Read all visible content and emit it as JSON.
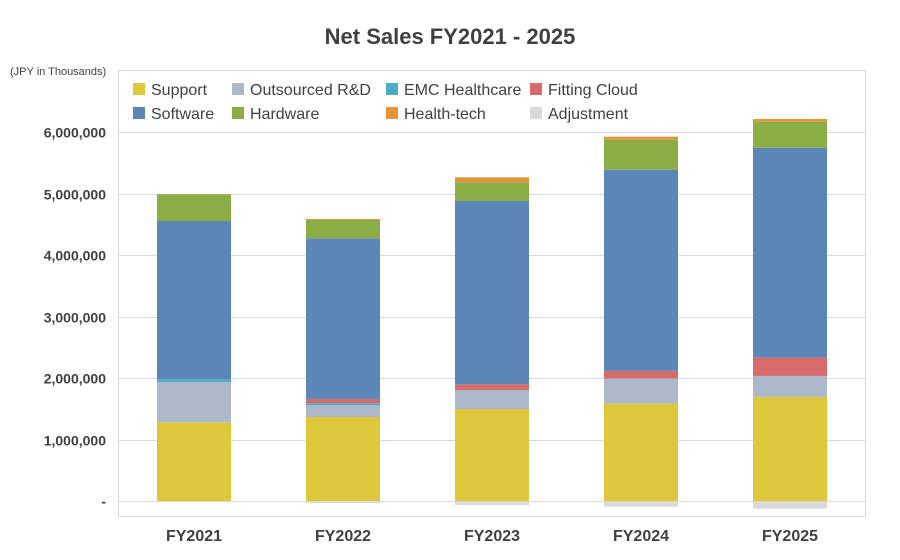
{
  "chart_data": {
    "type": "bar",
    "stacked": true,
    "title": "Net Sales FY2021 2025",
    "title_text": "Net Sales FY2021 - 2025",
    "unit_label": "(JPY in Thousands)",
    "xlabel": "",
    "ylabel": "",
    "ylim": [
      -250000,
      7000000
    ],
    "grid": true,
    "legend_position": "top-inside",
    "categories": [
      "FY2021",
      "FY2022",
      "FY2023",
      "FY2024",
      "FY2025"
    ],
    "yticks": [
      {
        "value": 0,
        "label": "-"
      },
      {
        "value": 1000000,
        "label": "1,000,000"
      },
      {
        "value": 2000000,
        "label": "2,000,000"
      },
      {
        "value": 3000000,
        "label": "3,000,000"
      },
      {
        "value": 4000000,
        "label": "4,000,000"
      },
      {
        "value": 5000000,
        "label": "5,000,000"
      },
      {
        "value": 6000000,
        "label": "6,000,000"
      }
    ],
    "series": [
      {
        "name": "Support",
        "color": "#DEC73A",
        "values": [
          1280000,
          1366000,
          1496000,
          1583000,
          1692000
        ]
      },
      {
        "name": "Outsourced R&D",
        "color": "#ADB8CA",
        "values": [
          655000,
          190000,
          309000,
          407000,
          342000
        ]
      },
      {
        "name": "EMC Healthcare",
        "color": "#4BACC6",
        "values": [
          45000,
          33000,
          0,
          0,
          0
        ]
      },
      {
        "name": "Fitting Cloud",
        "color": "#D66B6B",
        "values": [
          0,
          70000,
          93000,
          125000,
          298000
        ]
      },
      {
        "name": "Software",
        "color": "#5B87B8",
        "values": [
          2573000,
          2613000,
          2980000,
          3271000,
          3412000
        ]
      },
      {
        "name": "Hardware",
        "color": "#8AAE45",
        "values": [
          434000,
          297000,
          304000,
          489000,
          423000
        ]
      },
      {
        "name": "Health-tech",
        "color": "#E39537",
        "values": [
          0,
          16000,
          81000,
          49000,
          44000
        ]
      },
      {
        "name": "Adjustment",
        "color": "#D9D9D9",
        "values": [
          -16000,
          -33000,
          -65000,
          -92000,
          -124000
        ]
      }
    ],
    "legend_order": [
      "Support",
      "Outsourced R&D",
      "EMC Healthcare",
      "Fitting Cloud",
      "Software",
      "Hardware",
      "Health-tech",
      "Adjustment"
    ]
  }
}
